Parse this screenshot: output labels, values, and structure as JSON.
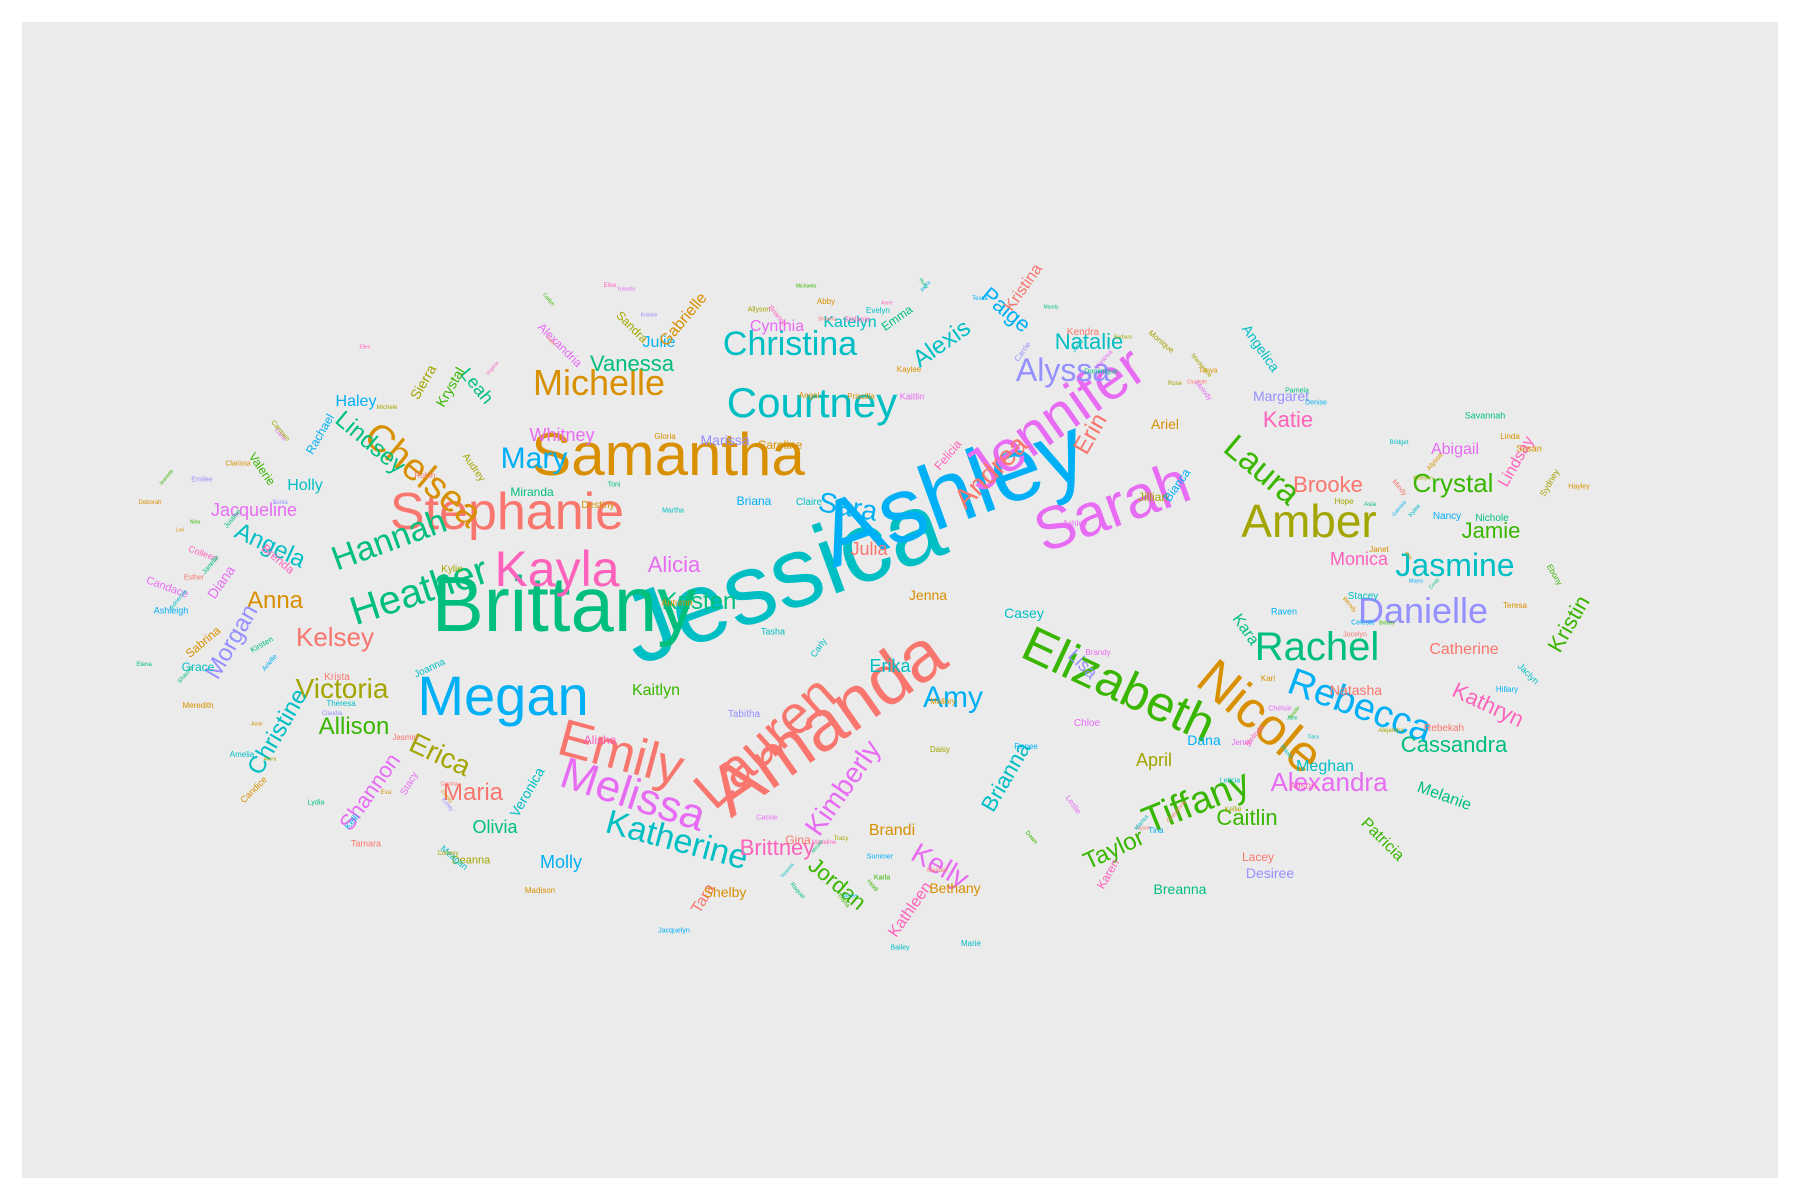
{
  "palette": [
    "#F8766D",
    "#D89000",
    "#A3A500",
    "#39B600",
    "#00BF7D",
    "#00BFC4",
    "#00B0F6",
    "#9590FF",
    "#E76BF3",
    "#FF62BC"
  ],
  "words": [
    {
      "text": "Jessica",
      "color": "#00BFC4"
    },
    {
      "text": "Ashley",
      "color": "#00B0F6"
    },
    {
      "text": "Brittany",
      "color": "#00BF7D"
    },
    {
      "text": "Amanda",
      "color": "#F8766D"
    },
    {
      "text": "Samantha",
      "color": "#D89000"
    },
    {
      "text": "Sarah",
      "color": "#E76BF3"
    },
    {
      "text": "Stephanie",
      "color": "#F8766D"
    },
    {
      "text": "Jennifer",
      "color": "#E76BF3"
    },
    {
      "text": "Elizabeth",
      "color": "#39B600"
    },
    {
      "text": "Lauren",
      "color": "#F8766D"
    },
    {
      "text": "Megan",
      "color": "#00B0F6"
    },
    {
      "text": "Emily",
      "color": "#F8766D"
    },
    {
      "text": "Nicole",
      "color": "#D89000"
    },
    {
      "text": "Kayla",
      "color": "#FF62BC"
    },
    {
      "text": "Melissa",
      "color": "#E76BF3"
    },
    {
      "text": "Amber",
      "color": "#A3A500"
    },
    {
      "text": "Courtney",
      "color": "#00BFC4"
    },
    {
      "text": "Heather",
      "color": "#00BF7D"
    },
    {
      "text": "Rachel",
      "color": "#00BF7D"
    },
    {
      "text": "Michelle",
      "color": "#D89000"
    },
    {
      "text": "Christina",
      "color": "#00BFC4"
    },
    {
      "text": "Rebecca",
      "color": "#00B0F6"
    },
    {
      "text": "Danielle",
      "color": "#9590FF"
    },
    {
      "text": "Tiffany",
      "color": "#39B600"
    },
    {
      "text": "Katherine",
      "color": "#00BFC4"
    },
    {
      "text": "Chelsea",
      "color": "#D89000"
    },
    {
      "text": "Hannah",
      "color": "#00BF7D"
    },
    {
      "text": "Kimberly",
      "color": "#E76BF3"
    },
    {
      "text": "Jasmine",
      "color": "#00BFC4"
    },
    {
      "text": "Laura",
      "color": "#39B600"
    },
    {
      "text": "Alyssa",
      "color": "#9590FF"
    },
    {
      "text": "Victoria",
      "color": "#A3A500"
    },
    {
      "text": "Alexandra",
      "color": "#E76BF3"
    },
    {
      "text": "Andrea",
      "color": "#F8766D"
    },
    {
      "text": "Kelsey",
      "color": "#F8766D"
    },
    {
      "text": "Mary",
      "color": "#00B0F6"
    },
    {
      "text": "Crystal",
      "color": "#39B600"
    },
    {
      "text": "Amy",
      "color": "#00B0F6"
    },
    {
      "text": "Kristen",
      "color": "#00BF7D"
    },
    {
      "text": "Vanessa",
      "color": "#00BF7D"
    },
    {
      "text": "Erica",
      "color": "#A3A500"
    },
    {
      "text": "Kelly",
      "color": "#E76BF3"
    },
    {
      "text": "Sara",
      "color": "#00B0F6"
    },
    {
      "text": "Alexis",
      "color": "#00BFC4"
    },
    {
      "text": "Lindsey",
      "color": "#00BF7D"
    },
    {
      "text": "Caitlin",
      "color": "#39B600"
    },
    {
      "text": "Erin",
      "color": "#F8766D"
    },
    {
      "text": "Taylor",
      "color": "#39B600"
    },
    {
      "text": "Anna",
      "color": "#D89000"
    },
    {
      "text": "Maria",
      "color": "#F8766D"
    },
    {
      "text": "Allison",
      "color": "#39B600"
    },
    {
      "text": "Angela",
      "color": "#00BFC4"
    },
    {
      "text": "Brianna",
      "color": "#00BFC4"
    },
    {
      "text": "Alicia",
      "color": "#E76BF3"
    },
    {
      "text": "Cassandra",
      "color": "#00BF7D"
    },
    {
      "text": "Kathryn",
      "color": "#FF62BC"
    },
    {
      "text": "Natalie",
      "color": "#00BFC4"
    },
    {
      "text": "Paige",
      "color": "#00B0F6"
    },
    {
      "text": "Kristin",
      "color": "#39B600"
    },
    {
      "text": "Brittney",
      "color": "#FF62BC"
    },
    {
      "text": "Christine",
      "color": "#00BFC4"
    },
    {
      "text": "Morgan",
      "color": "#9590FF"
    },
    {
      "text": "Shannon",
      "color": "#E76BF3"
    },
    {
      "text": "Jordan",
      "color": "#39B600"
    },
    {
      "text": "Brooke",
      "color": "#F8766D"
    },
    {
      "text": "Katie",
      "color": "#FF62BC"
    },
    {
      "text": "Jamie",
      "color": "#39B600"
    },
    {
      "text": "Kristina",
      "color": "#F8766D"
    },
    {
      "text": "Kathleen",
      "color": "#FF62BC"
    },
    {
      "text": "Whitney",
      "color": "#E76BF3"
    },
    {
      "text": "Olivia",
      "color": "#00BF7D"
    },
    {
      "text": "Julia",
      "color": "#F8766D"
    },
    {
      "text": "Erika",
      "color": "#00BFC4"
    },
    {
      "text": "Lisa",
      "color": "#9590FF"
    },
    {
      "text": "Kara",
      "color": "#00BF7D"
    },
    {
      "text": "Jacqueline",
      "color": "#E76BF3"
    },
    {
      "text": "Bethany",
      "color": "#D89000"
    },
    {
      "text": "Monica",
      "color": "#FF62BC"
    },
    {
      "text": "April",
      "color": "#A3A500"
    },
    {
      "text": "Kaitlyn",
      "color": "#39B600"
    },
    {
      "text": "Julie",
      "color": "#00B0F6"
    },
    {
      "text": "Katelyn",
      "color": "#00BFC4"
    },
    {
      "text": "Marissa",
      "color": "#9590FF"
    },
    {
      "text": "Molly",
      "color": "#00B0F6"
    },
    {
      "text": "Gabrielle",
      "color": "#D89000"
    },
    {
      "text": "Cynthia",
      "color": "#E76BF3"
    },
    {
      "text": "Leah",
      "color": "#00BF7D"
    },
    {
      "text": "Holly",
      "color": "#00BFC4"
    },
    {
      "text": "Brandi",
      "color": "#D89000"
    },
    {
      "text": "Meghan",
      "color": "#00BFC4"
    },
    {
      "text": "Melanie",
      "color": "#00BF7D"
    },
    {
      "text": "Patricia",
      "color": "#39B600"
    },
    {
      "text": "Abigail",
      "color": "#E76BF3"
    },
    {
      "text": "Lindsay",
      "color": "#FF62BC"
    },
    {
      "text": "Haley",
      "color": "#00B0F6"
    },
    {
      "text": "Natasha",
      "color": "#F8766D"
    },
    {
      "text": "Tara",
      "color": "#F8766D"
    },
    {
      "text": "Shelby",
      "color": "#D89000"
    },
    {
      "text": "Margaret",
      "color": "#9590FF"
    },
    {
      "text": "Desiree",
      "color": "#9590FF"
    },
    {
      "text": "Catherine",
      "color": "#F8766D"
    },
    {
      "text": "Dana",
      "color": "#00B0F6"
    },
    {
      "text": "Casey",
      "color": "#00BFC4"
    },
    {
      "text": "Krystal",
      "color": "#39B600"
    },
    {
      "text": "Sierra",
      "color": "#A3A500"
    },
    {
      "text": "Sandra",
      "color": "#A3A500"
    },
    {
      "text": "Miranda",
      "color": "#00BF7D"
    },
    {
      "text": "Briana",
      "color": "#00B0F6"
    },
    {
      "text": "Caroline",
      "color": "#D89000"
    },
    {
      "text": "Ariel",
      "color": "#D89000"
    },
    {
      "text": "Breanna",
      "color": "#00BF7D"
    },
    {
      "text": "Angelica",
      "color": "#00BFC4"
    },
    {
      "text": "Veronica",
      "color": "#00BFC4"
    },
    {
      "text": "Rachael",
      "color": "#00B0F6"
    },
    {
      "text": "Valerie",
      "color": "#39B600"
    },
    {
      "text": "Brenda",
      "color": "#FF62BC"
    },
    {
      "text": "Diana",
      "color": "#E76BF3"
    },
    {
      "text": "Sabrina",
      "color": "#D89000"
    },
    {
      "text": "Grace",
      "color": "#00BFC4"
    },
    {
      "text": "Karen",
      "color": "#FF62BC"
    },
    {
      "text": "Jenna",
      "color": "#D89000"
    },
    {
      "text": "Jillian",
      "color": "#A3A500"
    },
    {
      "text": "Gina",
      "color": "#F8766D"
    },
    {
      "text": "Bianca",
      "color": "#00B0F6"
    },
    {
      "text": "Felicia",
      "color": "#FF62BC"
    },
    {
      "text": "Alexandria",
      "color": "#E76BF3"
    },
    {
      "text": "Emma",
      "color": "#00BF7D"
    },
    {
      "text": "Hope",
      "color": "#A3A500"
    },
    {
      "text": "Nancy",
      "color": "#00B0F6"
    },
    {
      "text": "Nichole",
      "color": "#00BF7D"
    },
    {
      "text": "Stacey",
      "color": "#00BFC4"
    },
    {
      "text": "Rebekah",
      "color": "#F8766D"
    },
    {
      "text": "Alison",
      "color": "#FF62BC"
    },
    {
      "text": "Lacey",
      "color": "#F8766D"
    },
    {
      "text": "Chloe",
      "color": "#E76BF3"
    },
    {
      "text": "Tabitha",
      "color": "#9590FF"
    },
    {
      "text": "Alisha",
      "color": "#FF62BC"
    },
    {
      "text": "Savannah",
      "color": "#00BF7D"
    },
    {
      "text": "Susan",
      "color": "#D89000"
    },
    {
      "text": "Sydney",
      "color": "#A3A500"
    },
    {
      "text": "Hayley",
      "color": "#D89000"
    },
    {
      "text": "Teresa",
      "color": "#D89000"
    },
    {
      "text": "Linda",
      "color": "#D89000"
    },
    {
      "text": "Candace",
      "color": "#E76BF3"
    },
    {
      "text": "Colleen",
      "color": "#FF62BC"
    },
    {
      "text": "Ashleigh",
      "color": "#00B0F6"
    },
    {
      "text": "Candice",
      "color": "#D89000"
    },
    {
      "text": "Tamara",
      "color": "#F8766D"
    },
    {
      "text": "Kylie",
      "color": "#A3A500"
    },
    {
      "text": "Krista",
      "color": "#F8766D"
    },
    {
      "text": "Joanna",
      "color": "#00BFC4"
    },
    {
      "text": "Kelli",
      "color": "#00B0F6"
    },
    {
      "text": "Stacy",
      "color": "#E76BF3"
    },
    {
      "text": "Deanna",
      "color": "#A3A500"
    },
    {
      "text": "Meagan",
      "color": "#00BFC4"
    },
    {
      "text": "Audrey",
      "color": "#A3A500"
    },
    {
      "text": "Destiny",
      "color": "#D89000"
    },
    {
      "text": "Claire",
      "color": "#00BFC4"
    },
    {
      "text": "Autumn",
      "color": "#D89000"
    },
    {
      "text": "Tasha",
      "color": "#00BFC4"
    },
    {
      "text": "Carly",
      "color": "#00BFC4"
    },
    {
      "text": "Kaylee",
      "color": "#D89000"
    },
    {
      "text": "Priscilla",
      "color": "#D89000"
    },
    {
      "text": "Kaitlin",
      "color": "#E76BF3"
    },
    {
      "text": "Dominique",
      "color": "#00BF7D"
    },
    {
      "text": "Monique",
      "color": "#A3A500"
    },
    {
      "text": "Kendra",
      "color": "#F8766D"
    },
    {
      "text": "Raven",
      "color": "#00B0F6"
    },
    {
      "text": "Janet",
      "color": "#D89000"
    },
    {
      "text": "Kirsten",
      "color": "#00BF7D"
    },
    {
      "text": "Marie",
      "color": "#00BFC4"
    },
    {
      "text": "Mallory",
      "color": "#D89000"
    },
    {
      "text": "Daisy",
      "color": "#A3A500"
    },
    {
      "text": "Renee",
      "color": "#00B0F6"
    },
    {
      "text": "Leslie",
      "color": "#E76BF3"
    },
    {
      "text": "Jaclyn",
      "color": "#00BFC4"
    },
    {
      "text": "Hillary",
      "color": "#00B0F6"
    },
    {
      "text": "Meredith",
      "color": "#D89000"
    },
    {
      "text": "Amelia",
      "color": "#00BFC4"
    },
    {
      "text": "Theresa",
      "color": "#00BFC4"
    },
    {
      "text": "Jasmin",
      "color": "#F8766D"
    },
    {
      "text": "Clarissa",
      "color": "#D89000"
    },
    {
      "text": "Madison",
      "color": "#D89000"
    },
    {
      "text": "Martha",
      "color": "#00BFC4"
    },
    {
      "text": "Toni",
      "color": "#00BF7D"
    },
    {
      "text": "Gloria",
      "color": "#D89000"
    },
    {
      "text": "Angel",
      "color": "#D89000"
    },
    {
      "text": "Jenny",
      "color": "#E76BF3"
    },
    {
      "text": "Tina",
      "color": "#00B0F6"
    },
    {
      "text": "Kari",
      "color": "#D89000"
    },
    {
      "text": "Evelyn",
      "color": "#00BFC4"
    },
    {
      "text": "Allyson",
      "color": "#A3A500"
    },
    {
      "text": "Abby",
      "color": "#D89000"
    },
    {
      "text": "Jacquelyn",
      "color": "#00B0F6"
    },
    {
      "text": "Bailey",
      "color": "#00BFC4"
    },
    {
      "text": "Cassie",
      "color": "#E76BF3"
    },
    {
      "text": "Ebony",
      "color": "#39B600"
    },
    {
      "text": "Ashlee",
      "color": "#E76BF3"
    },
    {
      "text": "Robin",
      "color": "#F8766D"
    },
    {
      "text": "Carrie",
      "color": "#9590FF"
    },
    {
      "text": "Brandy",
      "color": "#E76BF3"
    }
  ],
  "tiny_words": [
    "Adrienne",
    "Alejandra",
    "Alexa",
    "Alyson",
    "Alyssa",
    "Amie",
    "Ana",
    "Anne",
    "Aimee",
    "Alana",
    "Arielle",
    "Asia",
    "Barbara",
    "Brianne",
    "Bridget",
    "Britney",
    "Caitlyn",
    "Carla",
    "Carmen",
    "Celeste",
    "Charlotte",
    "Chelsie",
    "Cheyenne",
    "Christy",
    "Cindy",
    "Claudia",
    "Cortney",
    "Cristina",
    "Dawn",
    "Deborah",
    "Denise",
    "Elena",
    "Elise",
    "Ellen",
    "Emilee",
    "Esther",
    "Eva",
    "Faith",
    "Gabriela",
    "Heidi",
    "Jade",
    "Jane",
    "Janelle",
    "Jeanette",
    "Jocelyn",
    "Justine",
    "Karla",
    "Katelynn",
    "Kellie",
    "Kristy",
    "Kristine",
    "Kylee",
    "Leticia",
    "Lori",
    "Lydia",
    "Mackenzie",
    "Madeline",
    "Mandy",
    "Marisa",
    "Maribel",
    "Mayra",
    "Melinda",
    "Melody",
    "Michaela",
    "Michele",
    "Mindy",
    "Miriam",
    "Nina",
    "Noelle",
    "Paula",
    "Pamela",
    "Raquel",
    "Rose",
    "Ruby",
    "Shawna",
    "Shauna",
    "Sonia",
    "Stefanie",
    "Summer",
    "Tanya",
    "Tessa",
    "Tiara",
    "Tracy",
    "Trisha",
    "Vanesa",
    "Virginia",
    "Wendy",
    "Yesenia",
    "Yolanda"
  ]
}
